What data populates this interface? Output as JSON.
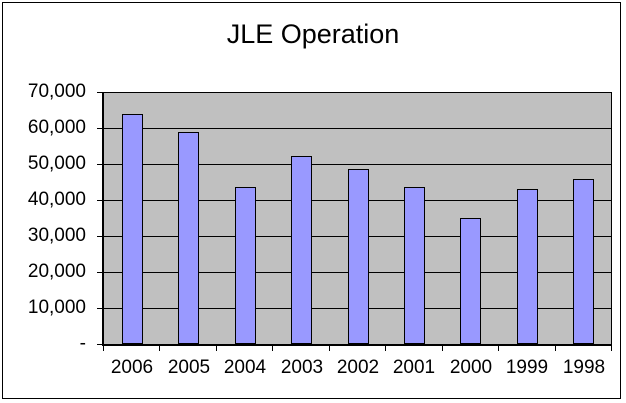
{
  "chart_data": {
    "type": "bar",
    "title": "JLE Operation",
    "categories": [
      "2006",
      "2005",
      "2004",
      "2003",
      "2002",
      "2001",
      "2000",
      "1999",
      "1998"
    ],
    "values": [
      64000,
      59000,
      43700,
      52300,
      48700,
      43700,
      35100,
      43000,
      45800
    ],
    "xlabel": "",
    "ylabel": "",
    "ylim": [
      0,
      70000
    ],
    "ytick_step": 10000,
    "ytick_labels_top_to_bottom": [
      "70,000",
      "60,000",
      "50,000",
      "40,000",
      "30,000",
      "20,000",
      "10,000",
      "-"
    ],
    "grid": "horizontal",
    "legend_position": "none",
    "colors": {
      "bar_fill": "#9999FF",
      "bar_border": "#000000",
      "plot_background": "#C0C0C0",
      "chart_background": "#FFFFFF",
      "gridline": "#000000",
      "axis": "#000000",
      "frame_border": "#000000",
      "text": "#000000"
    }
  }
}
